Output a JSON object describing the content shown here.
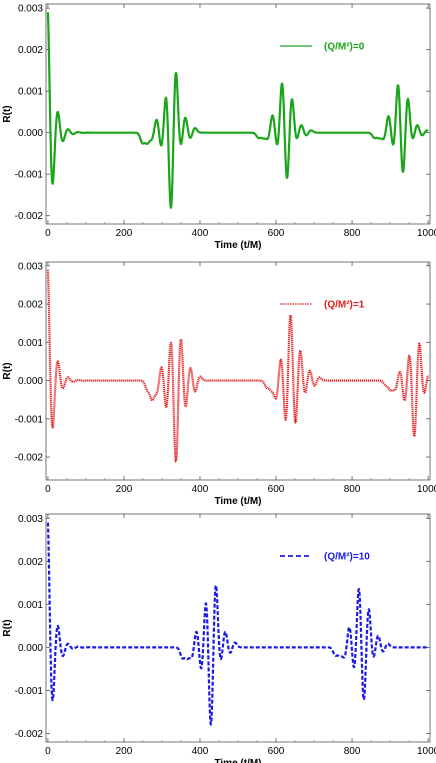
{
  "chart_data": [
    {
      "type": "line",
      "xlabel": "Time (t/M)",
      "ylabel": "R(t)",
      "xlim": [
        -5,
        1005
      ],
      "ylim": [
        -0.0022,
        0.0031
      ],
      "xticks": [
        0,
        200,
        400,
        600,
        800,
        1000
      ],
      "yticks": [
        -0.002,
        -0.001,
        0.0,
        0.001,
        0.002,
        0.003
      ],
      "ytick_labels": [
        "-0.002",
        "-0.001",
        "0.000",
        "0.001",
        "0.002",
        "0.003"
      ],
      "grid": false,
      "legend_position": "top-right",
      "series": [
        {
          "name": "(Q/M²)=0",
          "color": "#1aa51a",
          "line_style": "solid",
          "ringdown": {
            "t0": 0,
            "amp": 0.0029,
            "decay": 15,
            "period": 27
          },
          "echoes": [
            {
              "center": 305,
              "peaks": [
                [
                  -0.0004,
                  0.001
                ],
                [
                  -0.002,
                  0.0016
                ],
                [
                  -0.0004,
                  0.0004
                ]
              ]
            },
            {
              "center": 610,
              "peaks": [
                [
                  -0.0004,
                  0.0013
                ],
                [
                  -0.00125,
                  0.0009
                ],
                [
                  -0.0002,
                  0.0002
                ]
              ]
            },
            {
              "center": 915,
              "peaks": [
                [
                  -0.0004,
                  0.00125
                ],
                [
                  -0.0011,
                  0.0009
                ],
                [
                  -0.0002,
                  0.0002
                ]
              ]
            }
          ]
        }
      ]
    },
    {
      "type": "line",
      "xlabel": "Time (t/M)",
      "ylabel": "R(t)",
      "xlim": [
        -5,
        1005
      ],
      "ylim": [
        -0.0026,
        0.0031
      ],
      "xticks": [
        0,
        200,
        400,
        600,
        800,
        1000
      ],
      "yticks": [
        -0.002,
        -0.001,
        0.0,
        0.001,
        0.002,
        0.003
      ],
      "ytick_labels": [
        "-0.002",
        "-0.001",
        "0.000",
        "0.001",
        "0.002",
        "0.003"
      ],
      "grid": false,
      "legend_position": "top-right",
      "series": [
        {
          "name": "(Q/M²)=1",
          "color": "#e41a1a",
          "line_style": "dotted",
          "ringdown": {
            "t0": 0,
            "amp": 0.0029,
            "decay": 15,
            "period": 27
          },
          "echoes": [
            {
              "center": 318,
              "peaks": [
                [
                  -0.0008,
                  0.0012
                ],
                [
                  -0.0023,
                  0.0013
                ],
                [
                  -0.0008,
                  0.0004
                ]
              ]
            },
            {
              "center": 632,
              "peaks": [
                [
                  -0.0012,
                  0.0019
                ],
                [
                  -0.0013,
                  0.0009
                ],
                [
                  -0.0004,
                  0.0003
                ]
              ]
            },
            {
              "center": 945,
              "peaks": [
                [
                  -0.0006,
                  0.0008
                ],
                [
                  -0.0016,
                  0.0011
                ],
                [
                  -0.0004,
                  0.0002
                ]
              ]
            }
          ]
        }
      ]
    },
    {
      "type": "line",
      "xlabel": "Time (t/M)",
      "ylabel": "R(t)",
      "xlim": [
        -5,
        1005
      ],
      "ylim": [
        -0.0022,
        0.0031
      ],
      "xticks": [
        0,
        200,
        400,
        600,
        800,
        1000
      ],
      "yticks": [
        -0.002,
        -0.001,
        0.0,
        0.001,
        0.002,
        0.003
      ],
      "ytick_labels": [
        "-0.002",
        "-0.001",
        "0.000",
        "0.001",
        "0.002",
        "0.003"
      ],
      "grid": false,
      "legend_position": "top-right",
      "series": [
        {
          "name": "(Q/M²)=10",
          "color": "#1a1ae6",
          "line_style": "dashed",
          "ringdown": {
            "t0": 0,
            "amp": 0.0029,
            "decay": 15,
            "period": 27
          },
          "echoes": [
            {
              "center": 410,
              "peaks": [
                [
                  -0.0006,
                  0.0012
                ],
                [
                  -0.002,
                  0.0016
                ],
                [
                  -0.0004,
                  0.0004
                ]
              ]
            },
            {
              "center": 812,
              "peaks": [
                [
                  -0.0006,
                  0.0015
                ],
                [
                  -0.0014,
                  0.001
                ],
                [
                  -0.0003,
                  0.0003
                ]
              ]
            }
          ]
        }
      ]
    }
  ]
}
